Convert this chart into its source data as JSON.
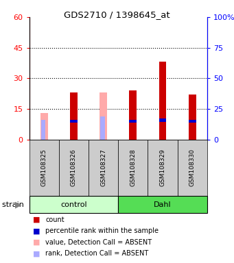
{
  "title": "GDS2710 / 1398645_at",
  "samples": [
    "GSM108325",
    "GSM108326",
    "GSM108327",
    "GSM108328",
    "GSM108329",
    "GSM108330"
  ],
  "groups": [
    "control",
    "control",
    "control",
    "Dahl",
    "Dahl",
    "Dahl"
  ],
  "count_values": [
    0,
    23,
    0,
    24,
    38,
    22
  ],
  "count_absent": [
    13,
    0,
    23,
    0,
    0,
    0
  ],
  "rank_values": [
    0,
    16,
    0,
    16,
    17,
    16
  ],
  "rank_absent": [
    16,
    0,
    19,
    0,
    0,
    0
  ],
  "absent_flags": [
    true,
    false,
    true,
    false,
    false,
    false
  ],
  "ylim_left": [
    0,
    60
  ],
  "ylim_right": [
    0,
    100
  ],
  "yticks_left": [
    0,
    15,
    30,
    45,
    60
  ],
  "yticks_right": [
    0,
    25,
    50,
    75,
    100
  ],
  "ytick_labels_left": [
    "0",
    "15",
    "30",
    "45",
    "60"
  ],
  "ytick_labels_right": [
    "0",
    "25",
    "50",
    "75",
    "100%"
  ],
  "color_count": "#cc0000",
  "color_rank": "#0000cc",
  "color_count_absent": "#ffaaaa",
  "color_rank_absent": "#aaaaff",
  "color_control_bg": "#ccffcc",
  "color_dahl_bg": "#55dd55",
  "color_sample_bg": "#cccccc",
  "bar_width": 0.25,
  "rank_bar_width": 0.15,
  "legend_items": [
    {
      "color": "#cc0000",
      "label": "count"
    },
    {
      "color": "#0000cc",
      "label": "percentile rank within the sample"
    },
    {
      "color": "#ffaaaa",
      "label": "value, Detection Call = ABSENT"
    },
    {
      "color": "#aaaaff",
      "label": "rank, Detection Call = ABSENT"
    }
  ]
}
